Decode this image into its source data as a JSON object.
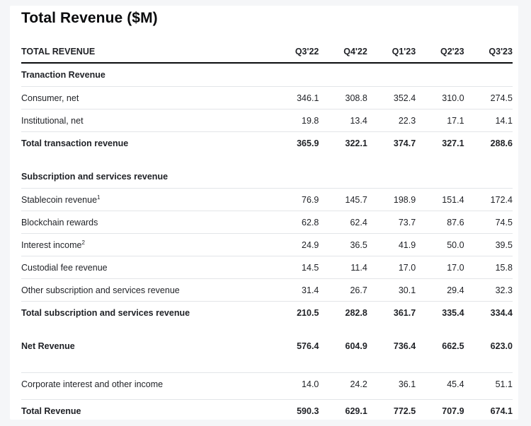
{
  "title": "Total Revenue ($M)",
  "header": {
    "label": "TOTAL REVENUE",
    "periods": [
      "Q3'22",
      "Q4'22",
      "Q1'23",
      "Q2'23",
      "Q3'23"
    ]
  },
  "transaction": {
    "section_label": "Tranaction Revenue",
    "rows": [
      {
        "label": "Consumer, net",
        "values": [
          "346.1",
          "308.8",
          "352.4",
          "310.0",
          "274.5"
        ]
      },
      {
        "label": "Institutional, net",
        "values": [
          "19.8",
          "13.4",
          "22.3",
          "17.1",
          "14.1"
        ]
      }
    ],
    "total": {
      "label": "Total transaction revenue",
      "values": [
        "365.9",
        "322.1",
        "374.7",
        "327.1",
        "288.6"
      ]
    }
  },
  "subscription": {
    "section_label": "Subscription and services revenue",
    "rows": [
      {
        "label": "Stablecoin revenue",
        "sup": "1",
        "values": [
          "76.9",
          "145.7",
          "198.9",
          "151.4",
          "172.4"
        ]
      },
      {
        "label": "Blockchain rewards",
        "sup": "",
        "values": [
          "62.8",
          "62.4",
          "73.7",
          "87.6",
          "74.5"
        ]
      },
      {
        "label": "Interest income",
        "sup": "2",
        "values": [
          "24.9",
          "36.5",
          "41.9",
          "50.0",
          "39.5"
        ]
      },
      {
        "label": "Custodial fee revenue",
        "sup": "",
        "values": [
          "14.5",
          "11.4",
          "17.0",
          "17.0",
          "15.8"
        ]
      },
      {
        "label": "Other subscription and services revenue",
        "sup": "",
        "values": [
          "31.4",
          "26.7",
          "30.1",
          "29.4",
          "32.3"
        ]
      }
    ],
    "total": {
      "label": "Total subscription and services revenue",
      "values": [
        "210.5",
        "282.8",
        "361.7",
        "335.4",
        "334.4"
      ]
    }
  },
  "net_revenue": {
    "label": "Net Revenue",
    "values": [
      "576.4",
      "604.9",
      "736.4",
      "662.5",
      "623.0"
    ]
  },
  "corporate": {
    "label": "Corporate interest and other income",
    "values": [
      "14.0",
      "24.2",
      "36.1",
      "45.4",
      "51.1"
    ]
  },
  "total_revenue": {
    "label": "Total Revenue",
    "values": [
      "590.3",
      "629.1",
      "772.5",
      "707.9",
      "674.1"
    ]
  }
}
